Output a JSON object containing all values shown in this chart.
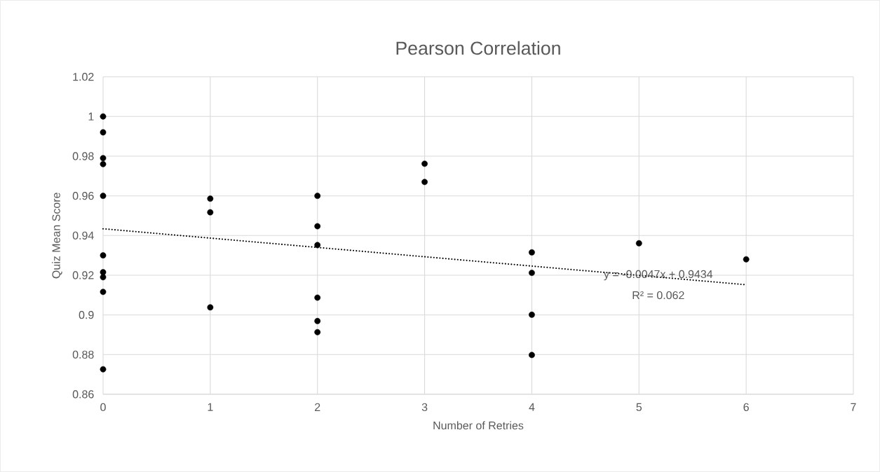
{
  "chart_data": {
    "type": "scatter",
    "title": "Pearson Correlation",
    "xlabel": "Number of Retries",
    "ylabel": "Quiz Mean Score",
    "xlim": [
      0,
      7
    ],
    "xticks": [
      0,
      1,
      2,
      3,
      4,
      5,
      6,
      7
    ],
    "ylim": [
      0.86,
      1.02
    ],
    "yticks": [
      0.86,
      0.88,
      0.9,
      0.92,
      0.94,
      0.96,
      0.98,
      1,
      1.02
    ],
    "grid": true,
    "marker": "circle",
    "series": [
      {
        "color": "#000000",
        "x": [
          0,
          0,
          0,
          0,
          0,
          0,
          0,
          0,
          0,
          0,
          1,
          1,
          1,
          2,
          2,
          2,
          2,
          2,
          2,
          3,
          3,
          4,
          4,
          4,
          4,
          5,
          6
        ],
        "values": [
          1.0,
          0.992,
          0.979,
          0.976,
          0.96,
          0.93,
          0.9215,
          0.919,
          0.9116,
          0.8726,
          0.9586,
          0.9517,
          0.9038,
          0.96,
          0.9447,
          0.9352,
          0.9087,
          0.8969,
          0.8913,
          0.9762,
          0.967,
          0.9315,
          0.9212,
          0.9001,
          0.8798,
          0.9361,
          0.928
        ]
      },
      {
        "type": "line",
        "line_style": "dotted",
        "marker": "none",
        "color": "#000000",
        "x": [
          0,
          6
        ],
        "values": [
          0.9434,
          0.9152
        ]
      }
    ],
    "annotations": [
      "y = -0.0047x + 0.9434",
      "R² = 0.062"
    ]
  }
}
